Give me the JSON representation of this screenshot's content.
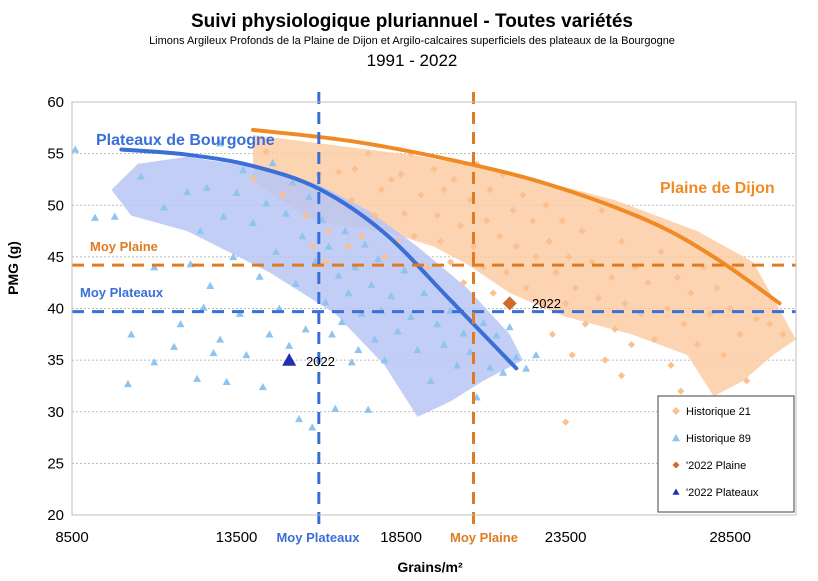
{
  "chart_data": {
    "type": "scatter",
    "title": "Suivi physiologique pluriannuel - Toutes variétés",
    "subtitle": "Limons Argileux Profonds de la Plaine de Dijon et Argilo-calcaires superficiels des plateaux de la Bourgogne",
    "years_label": "1991 - 2022",
    "xlabel": "Grains/m²",
    "ylabel": "PMG (g)",
    "xlim": [
      8500,
      30500
    ],
    "ylim": [
      20,
      60
    ],
    "x_ticks": [
      8500,
      13500,
      18500,
      23500,
      28500
    ],
    "y_ticks": [
      20,
      25,
      30,
      35,
      40,
      45,
      50,
      55,
      60
    ],
    "colors": {
      "plaine": "#f08a24",
      "plaine_light": "#fac090",
      "plaine_band": "#fbcda5",
      "plateaux": "#3a6fd8",
      "plateaux_light": "#8fc4ee",
      "plateaux_band": "#b7c6f4",
      "plaine_2022": "#d0692c",
      "plateaux_2022": "#1f2fb0"
    },
    "reference_lines": {
      "moy_plaine_pmg": {
        "label": "Moy Plaine",
        "value": 44.2
      },
      "moy_plateaux_pmg": {
        "label": "Moy Plateaux",
        "value": 39.7
      },
      "moy_plateaux_grains": {
        "label": "Moy Plateaux",
        "value": 16000
      },
      "moy_plaine_grains": {
        "label": "Moy Plaine",
        "value": 20700
      }
    },
    "curves": [
      {
        "name": "Plateaux de Bourgogne",
        "x": [
          10000,
          12000,
          14000,
          16000,
          18000,
          20000,
          22000
        ],
        "y": [
          55.4,
          54.9,
          53.8,
          51.6,
          47.3,
          40.8,
          34.2
        ]
      },
      {
        "name": "Plaine de Dijon",
        "x": [
          14000,
          17000,
          20000,
          23000,
          26000,
          28000,
          30000
        ],
        "y": [
          57.3,
          56.2,
          54.4,
          52.0,
          48.5,
          45.0,
          40.5
        ]
      }
    ],
    "series": [
      {
        "name": "Historique 21",
        "marker": "diamond",
        "points": [
          [
            14000,
            52.5
          ],
          [
            14400,
            55.2
          ],
          [
            14900,
            51.0
          ],
          [
            15200,
            52.0
          ],
          [
            15600,
            49.0
          ],
          [
            15800,
            46.0
          ],
          [
            16000,
            53.0
          ],
          [
            16200,
            44.5
          ],
          [
            16300,
            47.5
          ],
          [
            16600,
            53.2
          ],
          [
            16900,
            46.0
          ],
          [
            17000,
            50.5
          ],
          [
            17100,
            53.5
          ],
          [
            17300,
            47.0
          ],
          [
            17500,
            55.0
          ],
          [
            17700,
            49.0
          ],
          [
            17900,
            51.5
          ],
          [
            18000,
            45.0
          ],
          [
            18200,
            52.5
          ],
          [
            18400,
            46.5
          ],
          [
            18500,
            53.0
          ],
          [
            18600,
            49.2
          ],
          [
            18800,
            55.0
          ],
          [
            18900,
            47.0
          ],
          [
            19100,
            51.0
          ],
          [
            19300,
            44.0
          ],
          [
            19500,
            53.5
          ],
          [
            19600,
            49.0
          ],
          [
            19700,
            46.5
          ],
          [
            19800,
            51.5
          ],
          [
            20000,
            44.5
          ],
          [
            20100,
            52.5
          ],
          [
            20300,
            48.0
          ],
          [
            20400,
            42.5
          ],
          [
            20600,
            50.5
          ],
          [
            20700,
            46.0
          ],
          [
            20800,
            54.0
          ],
          [
            21000,
            44.0
          ],
          [
            21100,
            48.5
          ],
          [
            21200,
            51.5
          ],
          [
            21300,
            41.5
          ],
          [
            21500,
            47.0
          ],
          [
            21600,
            53.0
          ],
          [
            21700,
            43.5
          ],
          [
            21900,
            49.5
          ],
          [
            22000,
            46.0
          ],
          [
            22200,
            51.0
          ],
          [
            22300,
            42.0
          ],
          [
            22500,
            48.5
          ],
          [
            22600,
            45.0
          ],
          [
            22800,
            40.5
          ],
          [
            22900,
            50.0
          ],
          [
            23000,
            46.5
          ],
          [
            23100,
            37.5
          ],
          [
            23200,
            43.5
          ],
          [
            23400,
            48.5
          ],
          [
            23500,
            40.5
          ],
          [
            23600,
            45.0
          ],
          [
            23700,
            35.5
          ],
          [
            23800,
            42.0
          ],
          [
            24000,
            47.5
          ],
          [
            24100,
            38.5
          ],
          [
            24300,
            44.5
          ],
          [
            24500,
            41.0
          ],
          [
            24600,
            49.5
          ],
          [
            24700,
            35.0
          ],
          [
            24900,
            43.0
          ],
          [
            25000,
            38.0
          ],
          [
            25200,
            46.5
          ],
          [
            25300,
            40.5
          ],
          [
            25500,
            36.5
          ],
          [
            25600,
            44.0
          ],
          [
            25800,
            39.5
          ],
          [
            26000,
            42.5
          ],
          [
            26200,
            37.0
          ],
          [
            26400,
            45.5
          ],
          [
            26600,
            40.0
          ],
          [
            26700,
            34.5
          ],
          [
            26900,
            43.0
          ],
          [
            27100,
            38.5
          ],
          [
            27300,
            41.5
          ],
          [
            27500,
            36.5
          ],
          [
            27700,
            44.0
          ],
          [
            27900,
            39.5
          ],
          [
            28100,
            42.0
          ],
          [
            28300,
            35.5
          ],
          [
            28500,
            40.0
          ],
          [
            28800,
            37.5
          ],
          [
            29000,
            33.0
          ],
          [
            29300,
            39.0
          ],
          [
            29700,
            38.5
          ],
          [
            30100,
            37.5
          ],
          [
            23500,
            29.0
          ],
          [
            25200,
            33.5
          ],
          [
            27000,
            32.0
          ]
        ]
      },
      {
        "name": "Historique 89",
        "marker": "triangle",
        "points": [
          [
            8600,
            55.4
          ],
          [
            9200,
            48.8
          ],
          [
            9800,
            48.9
          ],
          [
            10200,
            32.7
          ],
          [
            10300,
            37.5
          ],
          [
            10600,
            52.8
          ],
          [
            11000,
            44.0
          ],
          [
            11000,
            34.8
          ],
          [
            11300,
            49.8
          ],
          [
            11600,
            36.3
          ],
          [
            11800,
            38.5
          ],
          [
            12000,
            51.3
          ],
          [
            12100,
            44.3
          ],
          [
            12300,
            33.2
          ],
          [
            12400,
            47.5
          ],
          [
            12500,
            40.1
          ],
          [
            12600,
            51.7
          ],
          [
            12700,
            42.2
          ],
          [
            12800,
            35.7
          ],
          [
            13000,
            56.0
          ],
          [
            13000,
            37.0
          ],
          [
            13100,
            48.9
          ],
          [
            13200,
            32.9
          ],
          [
            13400,
            45.0
          ],
          [
            13500,
            51.2
          ],
          [
            13600,
            39.5
          ],
          [
            13700,
            53.4
          ],
          [
            13800,
            35.5
          ],
          [
            14000,
            48.3
          ],
          [
            14200,
            43.1
          ],
          [
            14300,
            32.4
          ],
          [
            14400,
            50.2
          ],
          [
            14500,
            37.5
          ],
          [
            14600,
            54.1
          ],
          [
            14700,
            45.5
          ],
          [
            14800,
            40.0
          ],
          [
            15000,
            49.2
          ],
          [
            15100,
            36.4
          ],
          [
            15200,
            52.2
          ],
          [
            15300,
            42.4
          ],
          [
            15400,
            29.3
          ],
          [
            15500,
            47.0
          ],
          [
            15600,
            38.0
          ],
          [
            15700,
            50.8
          ],
          [
            15800,
            28.5
          ],
          [
            15900,
            44.6
          ],
          [
            16000,
            35.1
          ],
          [
            16100,
            48.6
          ],
          [
            16200,
            40.6
          ],
          [
            16300,
            46.0
          ],
          [
            16400,
            37.5
          ],
          [
            16500,
            30.3
          ],
          [
            16600,
            43.2
          ],
          [
            16700,
            38.7
          ],
          [
            16800,
            47.5
          ],
          [
            16900,
            41.5
          ],
          [
            17000,
            34.8
          ],
          [
            17100,
            44.0
          ],
          [
            17200,
            36.0
          ],
          [
            17300,
            39.5
          ],
          [
            17400,
            46.2
          ],
          [
            17500,
            30.2
          ],
          [
            17600,
            42.3
          ],
          [
            17700,
            37.0
          ],
          [
            17800,
            44.8
          ],
          [
            17900,
            39.8
          ],
          [
            18000,
            35.0
          ],
          [
            18200,
            41.2
          ],
          [
            18400,
            37.8
          ],
          [
            18600,
            43.7
          ],
          [
            18800,
            39.2
          ],
          [
            19000,
            36.0
          ],
          [
            19200,
            41.5
          ],
          [
            19400,
            33.0
          ],
          [
            19600,
            38.5
          ],
          [
            19800,
            36.5
          ],
          [
            20000,
            39.8
          ],
          [
            20200,
            34.5
          ],
          [
            20400,
            37.6
          ],
          [
            20600,
            35.8
          ],
          [
            20800,
            31.4
          ],
          [
            21000,
            38.6
          ],
          [
            21200,
            34.3
          ],
          [
            21400,
            37.4
          ],
          [
            21600,
            33.8
          ],
          [
            21800,
            38.2
          ],
          [
            22000,
            35.3
          ],
          [
            22300,
            34.2
          ],
          [
            22600,
            35.5
          ]
        ]
      },
      {
        "name": "'2022 Plaine",
        "marker": "diamond",
        "points": [
          [
            21800,
            40.5
          ]
        ],
        "label": "2022"
      },
      {
        "name": "'2022 Plateaux",
        "marker": "triangle",
        "points": [
          [
            15100,
            35.0
          ]
        ],
        "label": "2022"
      }
    ],
    "annotations": {
      "plateaux_label": "Plateaux de Bourgogne",
      "plaine_label": "Plaine de Dijon"
    },
    "legend": {
      "position": "bottom-right",
      "entries": [
        "Historique 21",
        "Historique 89",
        "'2022 Plaine",
        "'2022 Plateaux"
      ]
    }
  }
}
